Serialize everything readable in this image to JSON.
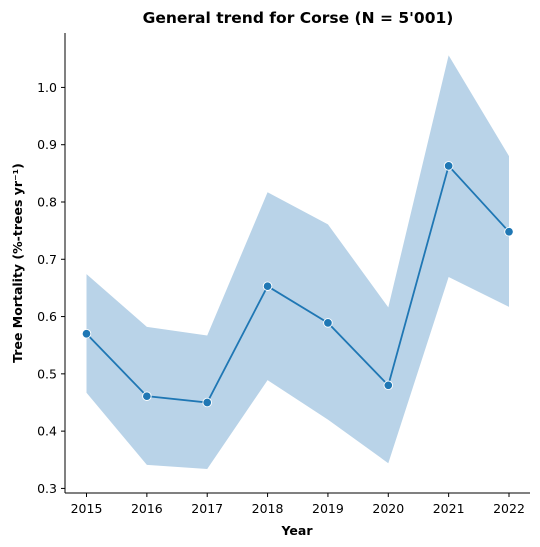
{
  "chart_data": {
    "type": "line",
    "title": "General trend for Corse  (N = 5'001)",
    "xlabel": "Year",
    "ylabel": "Tree Mortality (%-trees yr⁻¹)",
    "x": [
      "2015",
      "2016",
      "2017",
      "2018",
      "2019",
      "2020",
      "2021",
      "2022"
    ],
    "series": [
      {
        "values": [
          0.57,
          0.461,
          0.45,
          0.653,
          0.589,
          0.48,
          0.863,
          0.748
        ],
        "ci_lower": [
          0.467,
          0.341,
          0.334,
          0.489,
          0.42,
          0.344,
          0.669,
          0.617
        ],
        "ci_upper": [
          0.674,
          0.582,
          0.567,
          0.817,
          0.761,
          0.616,
          1.056,
          0.88
        ],
        "color": "#1f77b4",
        "band_color": "#b9d3e8",
        "marker": "circle"
      }
    ],
    "ylim": [
      0.292,
      1.095
    ],
    "yticks": [
      "0.3",
      "0.4",
      "0.5",
      "0.6",
      "0.7",
      "0.8",
      "0.9",
      "1.0"
    ],
    "grid": false,
    "legend": "none"
  }
}
